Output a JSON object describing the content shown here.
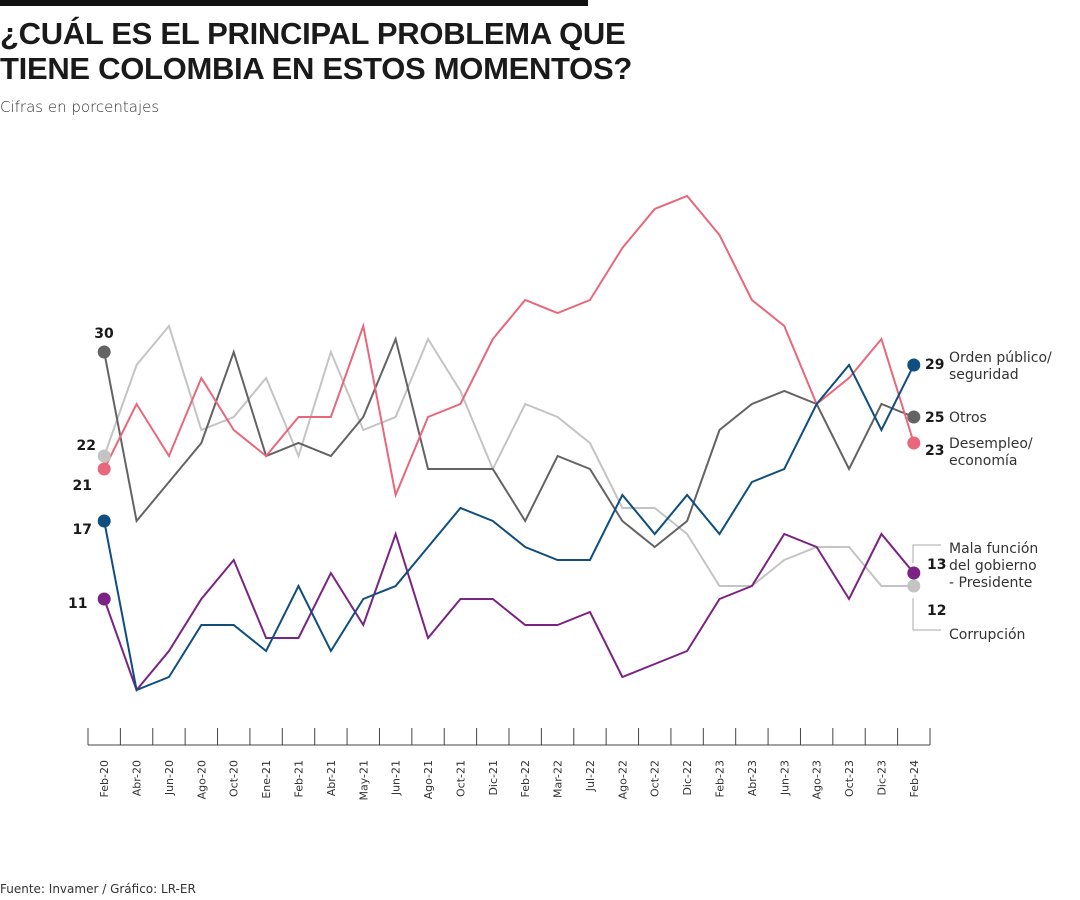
{
  "header": {
    "title_line1": "¿CUÁL ES EL PRINCIPAL PROBLEMA QUE",
    "title_line2": "TIENE COLOMBIA EN ESTOS MOMENTOS?",
    "subtitle": "Cifras en porcentajes"
  },
  "footer": {
    "source": "Fuente: Invamer / Gráfico: LR-ER"
  },
  "chart_data": {
    "type": "line",
    "title": "¿CUÁL ES EL PRINCIPAL PROBLEMA QUE TIENE COLOMBIA EN ESTOS MOMENTOS?",
    "subtitle": "Cifras en porcentajes",
    "xlabel": "",
    "ylabel": "",
    "ylim": [
      0,
      45
    ],
    "grid": false,
    "legend": "right (end labels)",
    "categories": [
      "Feb-20",
      "Abr-20",
      "Jun-20",
      "Ago-20",
      "Oct-20",
      "Ene-21",
      "Feb-21",
      "Abr-21",
      "May-21",
      "Jun-21",
      "Ago-21",
      "Oct-21",
      "Dic-21",
      "Feb-22",
      "Mar-22",
      "Jul-22",
      "Ago-22",
      "Oct-22",
      "Dic-22",
      "Feb-23",
      "Abr-23",
      "Jun-23",
      "Ago-23",
      "Oct-23",
      "Dic-23",
      "Feb-24"
    ],
    "series": [
      {
        "name": "Desempleo/ economía",
        "label_lines": [
          "Desempleo/",
          "economía"
        ],
        "color": "#e8677b",
        "values": [
          21,
          26,
          22,
          28,
          24,
          22,
          25,
          25,
          32,
          19,
          25,
          26,
          31,
          34,
          33,
          34,
          38,
          41,
          42,
          39,
          34,
          32,
          26,
          28,
          31,
          23
        ]
      },
      {
        "name": "Otros",
        "label_lines": [
          "Otros"
        ],
        "color": "#636363",
        "values": [
          30,
          17,
          20,
          23,
          30,
          22,
          23,
          22,
          25,
          31,
          21,
          21,
          21,
          17,
          22,
          21,
          17,
          15,
          17,
          24,
          26,
          27,
          26,
          21,
          26,
          25
        ]
      },
      {
        "name": "Corrupción",
        "label_lines": [
          "Corrupción"
        ],
        "color": "#c4c4c4",
        "values": [
          22,
          29,
          32,
          24,
          25,
          28,
          22,
          30,
          24,
          25,
          31,
          27,
          21,
          26,
          25,
          23,
          18,
          18,
          16,
          12,
          12,
          14,
          15,
          15,
          12,
          12
        ]
      },
      {
        "name": "Orden público/ seguridad",
        "label_lines": [
          "Orden público/",
          "seguridad"
        ],
        "color": "#0f4e7e",
        "values": [
          17,
          4,
          5,
          9,
          9,
          7,
          12,
          7,
          11,
          12,
          15,
          18,
          17,
          15,
          14,
          14,
          19,
          16,
          19,
          16,
          20,
          21,
          26,
          29,
          24,
          29
        ]
      },
      {
        "name": "Mala función del gobierno - Presidente",
        "label_lines": [
          "Mala función",
          "del gobierno",
          "- Presidente"
        ],
        "color": "#7a2382",
        "values": [
          11,
          4,
          7,
          11,
          14,
          8,
          8,
          13,
          9,
          16,
          8,
          11,
          11,
          9,
          9,
          10,
          5,
          6,
          7,
          11,
          12,
          16,
          15,
          11,
          16,
          13
        ]
      }
    ],
    "start_labels": [
      "30",
      "22",
      "21",
      "17",
      "11"
    ],
    "end_labels": [
      "29",
      "25",
      "23",
      "13",
      "12"
    ]
  }
}
